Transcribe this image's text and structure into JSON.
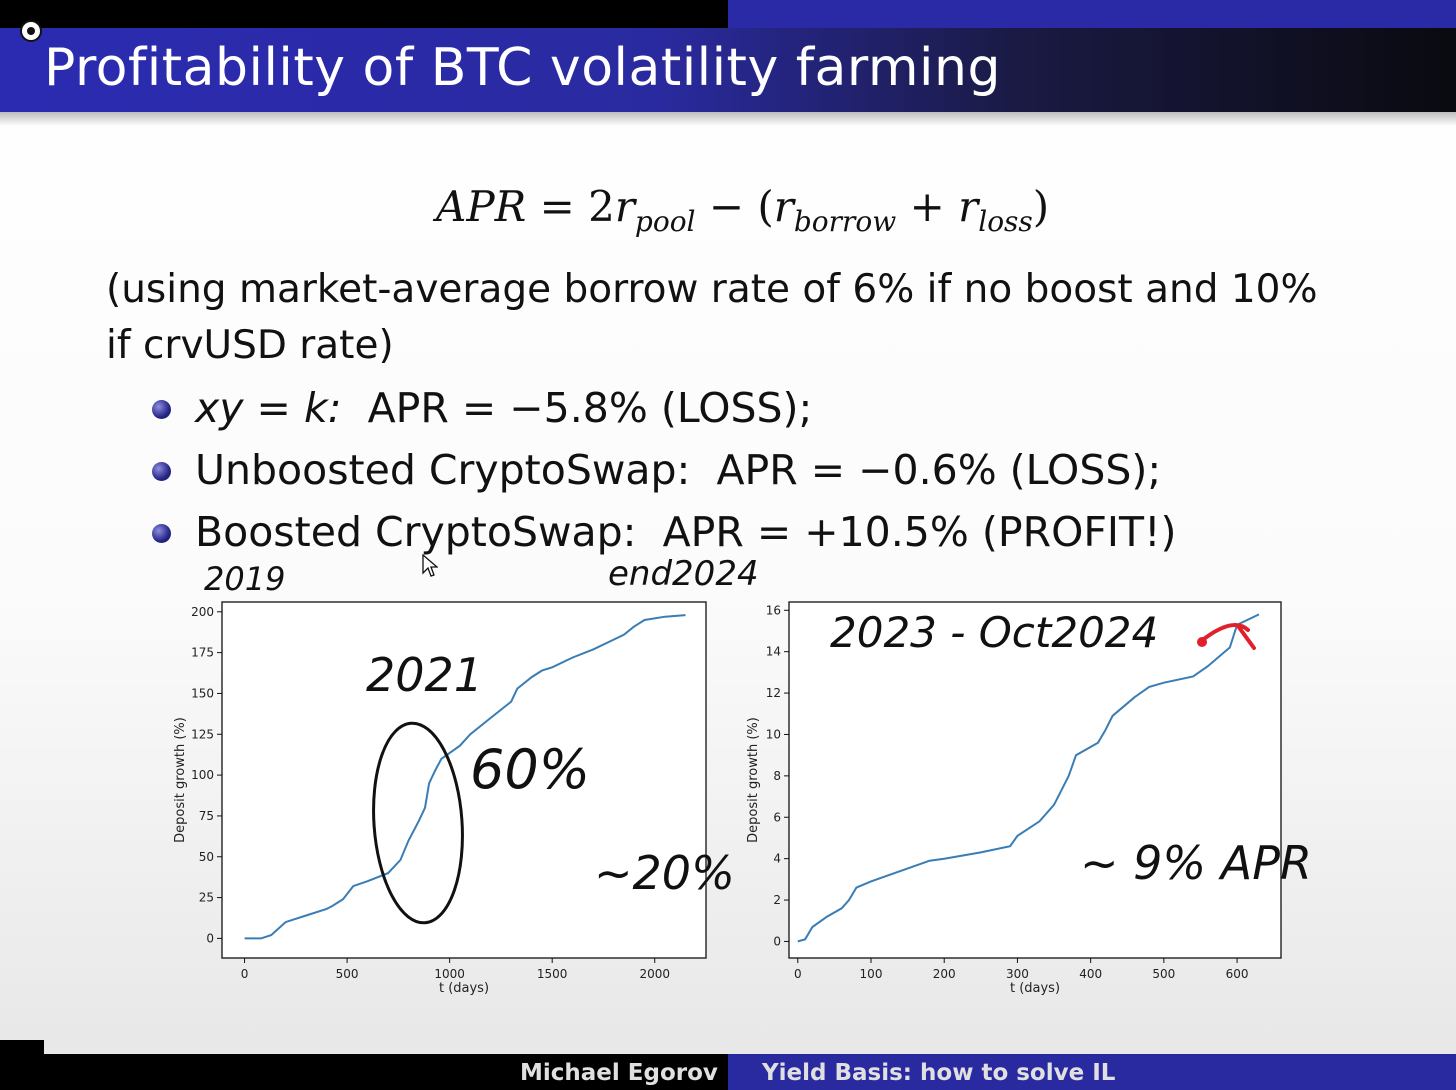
{
  "slide": {
    "title": "Profitability of BTC volatility farming",
    "formula": {
      "lhs": "APR",
      "eq": " = 2",
      "r": "r",
      "pool_sub": "pool",
      "minus": " − (",
      "borrow_sub": "borrow",
      "plus": " + ",
      "loss_sub": "loss",
      "close": ")"
    },
    "note": "(using market-average borrow rate of 6% if no boost and 10% if crvUSD rate)",
    "bullets": [
      {
        "label": "xy = k:",
        "value": "APR = −5.8% (LOSS);"
      },
      {
        "label": "Unboosted CryptoSwap:",
        "value": "APR = −0.6% (LOSS);"
      },
      {
        "label": "Boosted CryptoSwap:",
        "value": "APR = +10.5% (PROFIT!)"
      }
    ]
  },
  "annotations": {
    "start_year": "2019",
    "end_year": "end2024",
    "mid_year": "2021",
    "spike_pct": "60%",
    "avg_pct": "~20%",
    "range_right": "2023 - Oct2024",
    "apr_right": "~ 9% APR"
  },
  "footer": {
    "author": "Michael Egorov",
    "talk": "Yield Basis: how to solve IL"
  },
  "colors": {
    "line": "#3a7db5",
    "title_bar": "#2b2bb2",
    "bullet": "#262685",
    "ink_red": "#e0202a"
  },
  "chart_data": [
    {
      "type": "line",
      "title": "",
      "xlabel": "t (days)",
      "ylabel": "Deposit growth (%)",
      "xlim": [
        -110,
        2250
      ],
      "ylim": [
        -12,
        206
      ],
      "xticks": [
        0,
        500,
        1000,
        1500,
        2000
      ],
      "yticks": [
        0,
        25,
        50,
        75,
        100,
        125,
        150,
        175,
        200
      ],
      "x": [
        0,
        80,
        130,
        200,
        300,
        400,
        430,
        480,
        530,
        600,
        700,
        760,
        800,
        850,
        880,
        900,
        930,
        960,
        1050,
        1100,
        1200,
        1300,
        1330,
        1400,
        1450,
        1500,
        1600,
        1700,
        1800,
        1850,
        1900,
        1950,
        2050,
        2150
      ],
      "values": [
        0,
        0,
        2,
        10,
        14,
        18,
        20,
        24,
        32,
        35,
        40,
        48,
        60,
        72,
        80,
        95,
        103,
        110,
        118,
        125,
        135,
        145,
        153,
        160,
        164,
        166,
        172,
        177,
        183,
        186,
        191,
        195,
        197,
        198
      ]
    },
    {
      "type": "line",
      "title": "",
      "xlabel": "t (days)",
      "ylabel": "Deposit growth (%)",
      "xlim": [
        -12,
        660
      ],
      "ylim": [
        -0.8,
        16.4
      ],
      "xticks": [
        0,
        100,
        200,
        300,
        400,
        500,
        600
      ],
      "yticks": [
        0,
        2,
        4,
        6,
        8,
        10,
        12,
        14,
        16
      ],
      "x": [
        0,
        10,
        20,
        40,
        60,
        70,
        80,
        100,
        140,
        180,
        200,
        250,
        290,
        300,
        330,
        350,
        360,
        370,
        380,
        410,
        420,
        430,
        460,
        480,
        500,
        540,
        560,
        580,
        590,
        600,
        630
      ],
      "values": [
        0,
        0.1,
        0.7,
        1.2,
        1.6,
        2.0,
        2.6,
        2.9,
        3.4,
        3.9,
        4.0,
        4.3,
        4.6,
        5.1,
        5.8,
        6.6,
        7.3,
        8.0,
        9.0,
        9.6,
        10.2,
        10.9,
        11.8,
        12.3,
        12.5,
        12.8,
        13.3,
        13.9,
        14.2,
        15.3,
        15.8
      ]
    }
  ]
}
